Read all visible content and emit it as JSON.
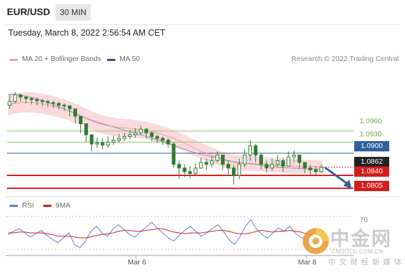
{
  "header": {
    "pair": "EUR/USD",
    "timeframe": "30 MIN",
    "datetime": "Tuesday, March 8, 2022 2:56:54 AM CET"
  },
  "legend": {
    "bb_label": "MA 20 + Bollinger Bands",
    "ma50_label": "MA 50",
    "copyright": "Research © 2022 Trading Central"
  },
  "rsi_legend": {
    "rsi_label": "RSI",
    "ma_label": "9MA"
  },
  "watermark": {
    "name": "中金网",
    "url": "CNGOLD.COM.CN",
    "sub": "中文财经新媒体"
  },
  "colors": {
    "bb_fill": "#f9d6d8",
    "ma20": "#e9a0a0",
    "ma50": "#8d96b8",
    "support": "#d51d1d",
    "resistance": "#8ac26b",
    "pivot": "#2f5f9d",
    "current": "#222222",
    "rsi": "#5b7fd0",
    "rsi_ma": "#d01c1c",
    "candle": "#2e7d32"
  },
  "chart_data": [
    {
      "type": "candlestick",
      "title": "EUR/USD",
      "timeframe": "30 MIN",
      "ylim": [
        1.079,
        1.112
      ],
      "x_ticks": [
        "Mar 6",
        "Mar 8"
      ],
      "current_price": "1.0862",
      "levels": [
        {
          "value": "1.0960",
          "kind": "resistance"
        },
        {
          "value": "1.0930",
          "kind": "resistance"
        },
        {
          "value": "1.0900",
          "kind": "pivot"
        },
        {
          "value": "1.0840",
          "kind": "support"
        },
        {
          "value": "1.0805",
          "kind": "support"
        }
      ],
      "forecast": {
        "from": 1.0862,
        "to": 1.081,
        "direction": "down"
      },
      "series": [
        {
          "name": "MA 20 + Bollinger Bands",
          "values": [
            1.103,
            1.1035,
            1.1037,
            1.1038,
            1.1037,
            1.1035,
            1.1032,
            1.1028,
            1.1024,
            1.1019,
            1.1013,
            1.1006,
            1.0998,
            1.099,
            1.0983,
            1.0978,
            1.0974,
            1.0971,
            1.0969,
            1.0968,
            1.0966,
            1.0964,
            1.0961,
            1.0957,
            1.0953,
            1.0948,
            1.0942,
            1.0935,
            1.0927,
            1.0919,
            1.0911,
            1.0903,
            1.0897,
            1.089,
            1.0884,
            1.0878,
            1.0874,
            1.0873,
            1.0873,
            1.0872,
            1.087,
            1.0869,
            1.0868,
            1.0867,
            1.0866,
            1.0865,
            1.0864,
            1.0864,
            1.0863,
            1.0863,
            1.0862
          ]
        },
        {
          "name": "MA 50",
          "values": [
            1.106,
            1.1059,
            1.1057,
            1.1054,
            1.105,
            1.1045,
            1.1039,
            1.1033,
            1.1026,
            1.1019,
            1.1012,
            1.1005,
            1.0998,
            1.0991,
            1.0985,
            1.098,
            1.0975,
            1.097,
            1.0965,
            1.096,
            1.0955,
            1.095,
            1.0945,
            1.094,
            1.0935,
            1.0929,
            1.0923,
            1.0917,
            1.0911,
            1.0905,
            1.09,
            1.0896,
            1.0892,
            1.0888,
            1.0884,
            1.088,
            1.0877,
            1.0874,
            1.0872,
            1.087,
            1.0868,
            1.0866,
            1.0864,
            1.0862,
            1.0861,
            1.086,
            1.0859,
            1.0858,
            1.0858,
            1.0857,
            1.0857
          ]
        }
      ],
      "close": [
        1.104,
        1.1058,
        1.1052,
        1.1048,
        1.1045,
        1.1042,
        1.104,
        1.1037,
        1.1035,
        1.103,
        1.1028,
        1.102,
        1.1,
        1.098,
        1.095,
        1.0925,
        1.0928,
        1.0922,
        1.093,
        1.0935,
        1.094,
        1.0945,
        1.095,
        1.0955,
        1.0965,
        1.0955,
        1.0945,
        1.094,
        1.0935,
        1.0925,
        1.087,
        1.086,
        1.085,
        1.0845,
        1.086,
        1.0875,
        1.087,
        1.088,
        1.0895,
        1.087,
        1.086,
        1.084,
        1.087,
        1.0895,
        1.092,
        1.0895,
        1.087,
        1.086,
        1.087,
        1.088,
        1.0865,
        1.089,
        1.0895,
        1.0875,
        1.086,
        1.0855,
        1.085,
        1.0862
      ],
      "high": [
        1.106,
        1.1065,
        1.106,
        1.1055,
        1.1052,
        1.105,
        1.1048,
        1.1045,
        1.1042,
        1.1038,
        1.1035,
        1.103,
        1.101,
        1.0995,
        1.098,
        1.095,
        1.0942,
        1.094,
        1.0945,
        1.0948,
        1.0952,
        1.0955,
        1.0962,
        1.0968,
        1.0975,
        1.0968,
        1.0958,
        1.095,
        1.0945,
        1.094,
        1.093,
        1.088,
        1.087,
        1.0865,
        1.0872,
        1.0888,
        1.0885,
        1.0892,
        1.0905,
        1.0895,
        1.088,
        1.0868,
        1.0885,
        1.091,
        1.0935,
        1.0925,
        1.09,
        1.088,
        1.0885,
        1.0895,
        1.0888,
        1.0905,
        1.0908,
        1.0895,
        1.0875,
        1.0868,
        1.0866,
        1.087
      ],
      "low": [
        1.102,
        1.1035,
        1.104,
        1.1035,
        1.1032,
        1.103,
        1.1028,
        1.1025,
        1.1022,
        1.1018,
        1.1015,
        1.1,
        1.098,
        1.0955,
        1.093,
        1.0905,
        1.0915,
        1.091,
        1.0915,
        1.0922,
        1.0928,
        1.0932,
        1.0938,
        1.0942,
        1.095,
        1.094,
        1.0932,
        1.0928,
        1.0922,
        1.0915,
        1.086,
        1.083,
        1.0835,
        1.0832,
        1.0842,
        1.0858,
        1.0855,
        1.0862,
        1.0875,
        1.0855,
        1.084,
        1.0815,
        1.083,
        1.0862,
        1.088,
        1.0875,
        1.0855,
        1.0848,
        1.0852,
        1.0862,
        1.085,
        1.0865,
        1.0875,
        1.0858,
        1.0845,
        1.0842,
        1.084,
        1.0848
      ]
    },
    {
      "type": "line",
      "title": "RSI",
      "ylim": [
        25,
        80
      ],
      "levels": [
        "70"
      ],
      "x_ticks": [
        "Mar 6",
        "Mar 8"
      ],
      "series": [
        {
          "name": "RSI",
          "values": [
            48,
            52,
            55,
            50,
            45,
            49,
            53,
            47,
            42,
            38,
            44,
            50,
            36,
            32,
            40,
            52,
            58,
            50,
            46,
            55,
            60,
            54,
            48,
            45,
            52,
            57,
            63,
            56,
            50,
            44,
            40,
            47,
            53,
            58,
            52,
            46,
            50,
            55,
            60,
            52,
            42,
            36,
            45,
            58,
            66,
            55,
            48,
            44,
            50,
            56,
            52,
            58,
            50,
            45,
            42,
            40,
            41,
            38
          ]
        },
        {
          "name": "9MA",
          "values": [
            50,
            50,
            51,
            51,
            50,
            50,
            50,
            49,
            48,
            46,
            46,
            46,
            45,
            44,
            44,
            45,
            47,
            48,
            49,
            50,
            52,
            53,
            53,
            52,
            52,
            53,
            54,
            55,
            55,
            53,
            51,
            50,
            49,
            50,
            50,
            50,
            51,
            52,
            53,
            53,
            52,
            50,
            49,
            49,
            50,
            52,
            53,
            52,
            51,
            52,
            52,
            53,
            52,
            51,
            49,
            47,
            45,
            44
          ]
        }
      ]
    }
  ]
}
